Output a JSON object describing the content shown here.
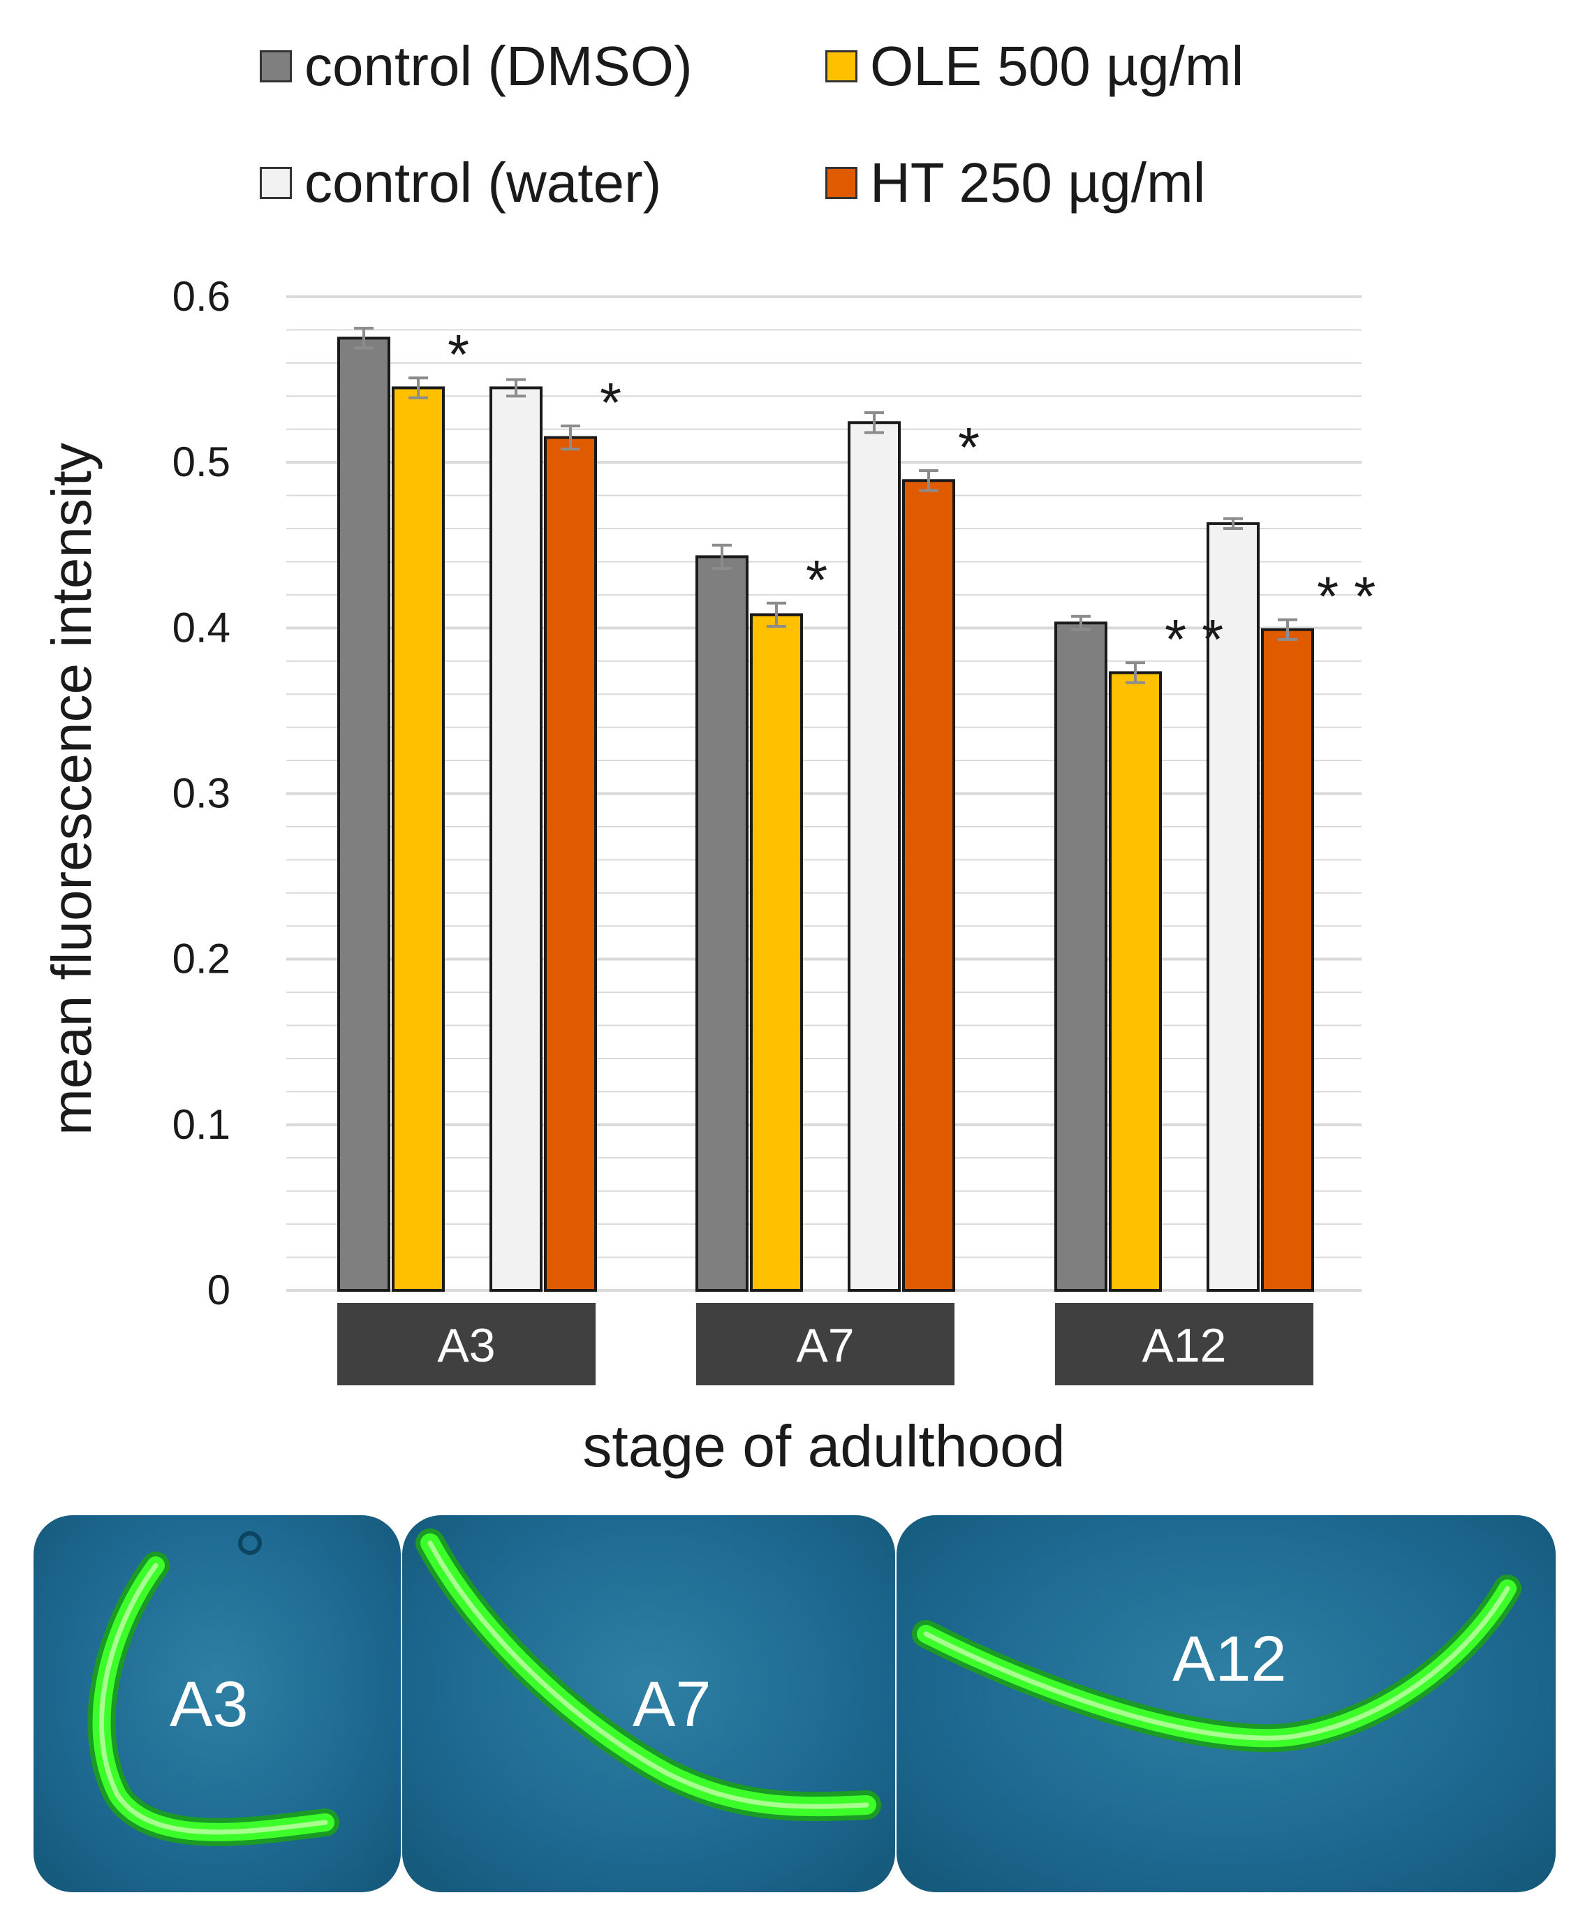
{
  "chart_data": {
    "type": "bar",
    "title": "",
    "xlabel": "stage of adulthood",
    "ylabel": "mean fluorescence intensity",
    "ylim": [
      0,
      0.6
    ],
    "yticks": [
      "0",
      "0.1",
      "0.2",
      "0.3",
      "0.4",
      "0.5",
      "0.6"
    ],
    "categories": [
      "A3",
      "A7",
      "A12"
    ],
    "series": [
      {
        "name": "control (DMSO)",
        "color": "#7f7f7f",
        "values": [
          0.575,
          0.443,
          0.403
        ],
        "errors": [
          0.006,
          0.007,
          0.004
        ]
      },
      {
        "name": "OLE 500 µg/ml",
        "color": "#ffc000",
        "values": [
          0.545,
          0.408,
          0.373
        ],
        "errors": [
          0.006,
          0.007,
          0.006
        ]
      },
      {
        "name": "control (water)",
        "color": "#f2f2f2",
        "values": [
          0.545,
          0.524,
          0.463
        ],
        "errors": [
          0.005,
          0.006,
          0.003
        ]
      },
      {
        "name": "HT 250 µg/ml",
        "color": "#e05a00",
        "values": [
          0.515,
          0.489,
          0.399
        ],
        "errors": [
          0.007,
          0.006,
          0.006
        ]
      }
    ],
    "annotations": [
      {
        "series": 1,
        "category": 0,
        "text": "*"
      },
      {
        "series": 3,
        "category": 0,
        "text": "*"
      },
      {
        "series": 1,
        "category": 1,
        "text": "*"
      },
      {
        "series": 3,
        "category": 1,
        "text": "*"
      },
      {
        "series": 1,
        "category": 2,
        "text": "**"
      },
      {
        "series": 3,
        "category": 2,
        "text": "**"
      }
    ],
    "gridlines": true,
    "legend_position": "top"
  },
  "legend": {
    "items": [
      {
        "label": "control (DMSO)",
        "color": "#7f7f7f"
      },
      {
        "label": "OLE 500 µg/ml",
        "color": "#ffc000"
      },
      {
        "label": "control (water)",
        "color": "#f2f2f2"
      },
      {
        "label": "HT 250 µg/ml",
        "color": "#e05a00"
      }
    ]
  },
  "images": {
    "panels": [
      {
        "label": "A3"
      },
      {
        "label": "A7"
      },
      {
        "label": "A12"
      }
    ]
  },
  "colors": {
    "category_box": "#404040",
    "grid": "#d9d9d9",
    "worm": "#3cff2a"
  }
}
